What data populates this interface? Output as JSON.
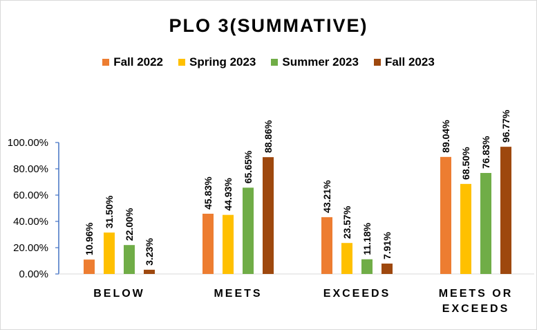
{
  "colors": {
    "fall_2022": "#ED7D31",
    "spring_2023": "#FFC000",
    "summer_2023": "#70AD47",
    "fall_2023": "#9E480E",
    "axis": "#4472C4",
    "text": "#000000"
  },
  "chart_data": {
    "type": "bar",
    "title": "PLO 3(SUMMATIVE)",
    "xlabel": "",
    "ylabel": "",
    "ylim": [
      0,
      100
    ],
    "yticks": [
      "0.00%",
      "20.00%",
      "40.00%",
      "60.00%",
      "80.00%",
      "100.00%"
    ],
    "grid": false,
    "legend_position": "top",
    "categories": [
      "BELOW",
      "MEETS",
      "EXCEEDS",
      "MEETS OR EXCEEDS"
    ],
    "series": [
      {
        "name": "Fall 2022",
        "values": [
          10.96,
          45.83,
          43.21,
          89.04
        ],
        "labels": [
          "10.96%",
          "45.83%",
          "43.21%",
          "89.04%"
        ],
        "color": "#ED7D31"
      },
      {
        "name": "Spring 2023",
        "values": [
          31.5,
          44.93,
          23.57,
          68.5
        ],
        "labels": [
          "31.50%",
          "44.93%",
          "23.57%",
          "68.50%"
        ],
        "color": "#FFC000"
      },
      {
        "name": "Summer 2023",
        "values": [
          22.0,
          65.65,
          11.18,
          76.83
        ],
        "labels": [
          "22.00%",
          "65.65%",
          "11.18%",
          "76.83%"
        ],
        "color": "#70AD47"
      },
      {
        "name": "Fall 2023",
        "values": [
          3.23,
          88.86,
          7.91,
          96.77
        ],
        "labels": [
          "3.23%",
          "88.86%",
          "7.91%",
          "96.77%"
        ],
        "color": "#9E480E"
      }
    ]
  }
}
